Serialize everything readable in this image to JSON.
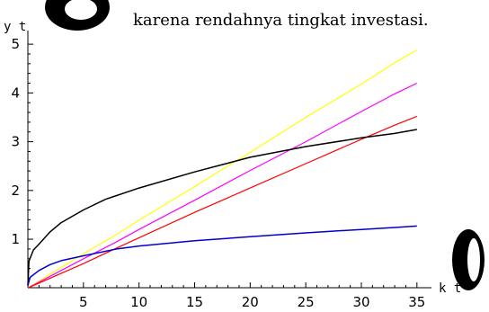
{
  "caption": "karena rendahnya tingkat investasi.",
  "chart_data": {
    "type": "line",
    "title": "",
    "xlabel": "k t",
    "ylabel": "y t",
    "xlim": [
      0,
      35.5
    ],
    "ylim": [
      -0.05,
      5.15
    ],
    "x_ticks": [
      5,
      10,
      15,
      20,
      25,
      30,
      35
    ],
    "y_ticks": [
      1,
      2,
      3,
      4,
      5
    ],
    "grid": false,
    "legend": "none",
    "series": [
      {
        "color": "#ffff00",
        "points": [
          [
            0,
            0
          ],
          [
            2,
            0.28
          ],
          [
            5,
            0.7
          ],
          [
            8,
            1.1
          ],
          [
            10,
            1.39
          ],
          [
            15,
            2.08
          ],
          [
            20,
            2.78
          ],
          [
            25,
            3.5
          ],
          [
            30,
            4.18
          ],
          [
            33,
            4.62
          ],
          [
            35,
            4.88
          ]
        ]
      },
      {
        "color": "#ff00ff",
        "points": [
          [
            0,
            0
          ],
          [
            2,
            0.24
          ],
          [
            5,
            0.6
          ],
          [
            8,
            0.95
          ],
          [
            10,
            1.2
          ],
          [
            15,
            1.8
          ],
          [
            20,
            2.41
          ],
          [
            25,
            3.0
          ],
          [
            30,
            3.62
          ],
          [
            33,
            3.98
          ],
          [
            35,
            4.2
          ]
        ]
      },
      {
        "color": "#ff0000",
        "points": [
          [
            0,
            0
          ],
          [
            2,
            0.2
          ],
          [
            5,
            0.5
          ],
          [
            8,
            0.82
          ],
          [
            10,
            1.03
          ],
          [
            15,
            1.55
          ],
          [
            20,
            2.05
          ],
          [
            25,
            2.55
          ],
          [
            30,
            3.05
          ],
          [
            33,
            3.34
          ],
          [
            35,
            3.52
          ]
        ]
      },
      {
        "color": "#000000",
        "points": [
          [
            0,
            0.05
          ],
          [
            0.1,
            0.55
          ],
          [
            0.5,
            0.78
          ],
          [
            1,
            0.9
          ],
          [
            2,
            1.15
          ],
          [
            3,
            1.34
          ],
          [
            5,
            1.6
          ],
          [
            7,
            1.82
          ],
          [
            10,
            2.05
          ],
          [
            15,
            2.38
          ],
          [
            20,
            2.68
          ],
          [
            25,
            2.9
          ],
          [
            30,
            3.08
          ],
          [
            33,
            3.17
          ],
          [
            35,
            3.25
          ]
        ]
      },
      {
        "color": "#0000cc",
        "points": [
          [
            0,
            0.05
          ],
          [
            0.2,
            0.22
          ],
          [
            1,
            0.36
          ],
          [
            2,
            0.48
          ],
          [
            3,
            0.56
          ],
          [
            5,
            0.66
          ],
          [
            8,
            0.8
          ],
          [
            10,
            0.86
          ],
          [
            15,
            0.97
          ],
          [
            20,
            1.05
          ],
          [
            25,
            1.13
          ],
          [
            30,
            1.2
          ],
          [
            33,
            1.24
          ],
          [
            35,
            1.27
          ]
        ]
      }
    ]
  }
}
